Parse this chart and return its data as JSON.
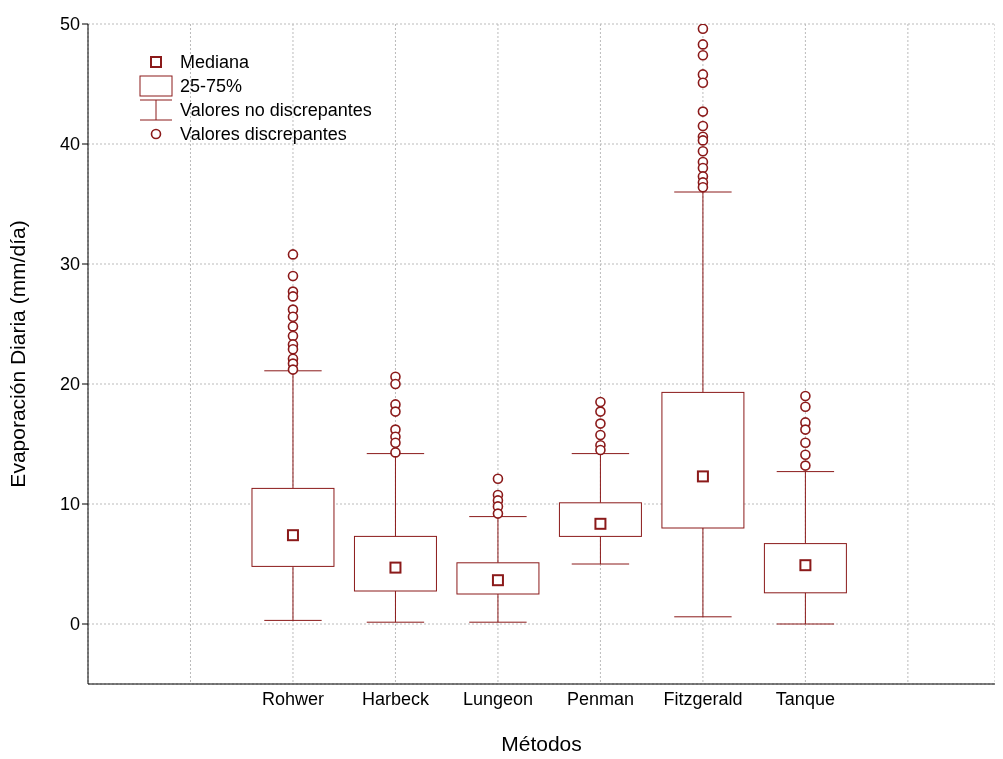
{
  "chart_data": {
    "type": "box",
    "xlabel": "Métodos",
    "ylabel": "Evaporación Diaria (mm/día)",
    "categories": [
      null,
      "Rohwer",
      "Harbeck",
      "Lungeon",
      "Penman",
      "Fitzgerald",
      "Tanque",
      null
    ],
    "series": [
      {
        "color": "#8b1a1a",
        "boxes": [
          null,
          {
            "low": 0.3,
            "q1": 4.8,
            "median": 7.4,
            "q3": 11.3,
            "high": 21.1,
            "outliers": [
              30.8,
              29.0,
              27.7,
              27.3,
              26.2,
              25.6,
              24.8,
              24.0,
              23.3,
              22.9,
              22.1,
              21.7,
              21.2
            ]
          },
          {
            "low": 0.15,
            "q1": 2.75,
            "median": 4.7,
            "q3": 7.3,
            "high": 14.2,
            "outliers": [
              20.6,
              20.0,
              18.3,
              17.7,
              16.2,
              15.6,
              15.1,
              14.3
            ]
          },
          {
            "low": 0.15,
            "q1": 2.5,
            "median": 3.65,
            "q3": 5.1,
            "high": 8.95,
            "outliers": [
              12.1,
              10.75,
              10.3,
              9.8,
              9.2
            ]
          },
          {
            "low": 5.0,
            "q1": 7.3,
            "median": 8.35,
            "q3": 10.1,
            "high": 14.2,
            "outliers": [
              18.5,
              17.7,
              16.7,
              15.75,
              14.9,
              14.5
            ]
          },
          {
            "low": 0.6,
            "q1": 8.0,
            "median": 12.3,
            "q3": 19.3,
            "high": 36.0,
            "outliers": [
              49.6,
              48.3,
              47.4,
              45.8,
              45.1,
              42.7,
              41.5,
              40.6,
              40.3,
              39.4,
              38.5,
              38.0,
              37.3,
              36.8,
              36.4
            ]
          },
          {
            "low": 0.0,
            "q1": 2.6,
            "median": 4.9,
            "q3": 6.7,
            "high": 12.7,
            "outliers": [
              19.0,
              18.1,
              16.8,
              16.2,
              15.1,
              14.1,
              13.2
            ]
          },
          null
        ]
      }
    ],
    "ylim": [
      -5,
      50
    ],
    "yticks": [
      0,
      10,
      20,
      30,
      40,
      50
    ],
    "grid": true,
    "annotations": [
      "Mediana",
      "25-75%",
      "Valores no discrepantes",
      "Valores discrepantes"
    ]
  }
}
